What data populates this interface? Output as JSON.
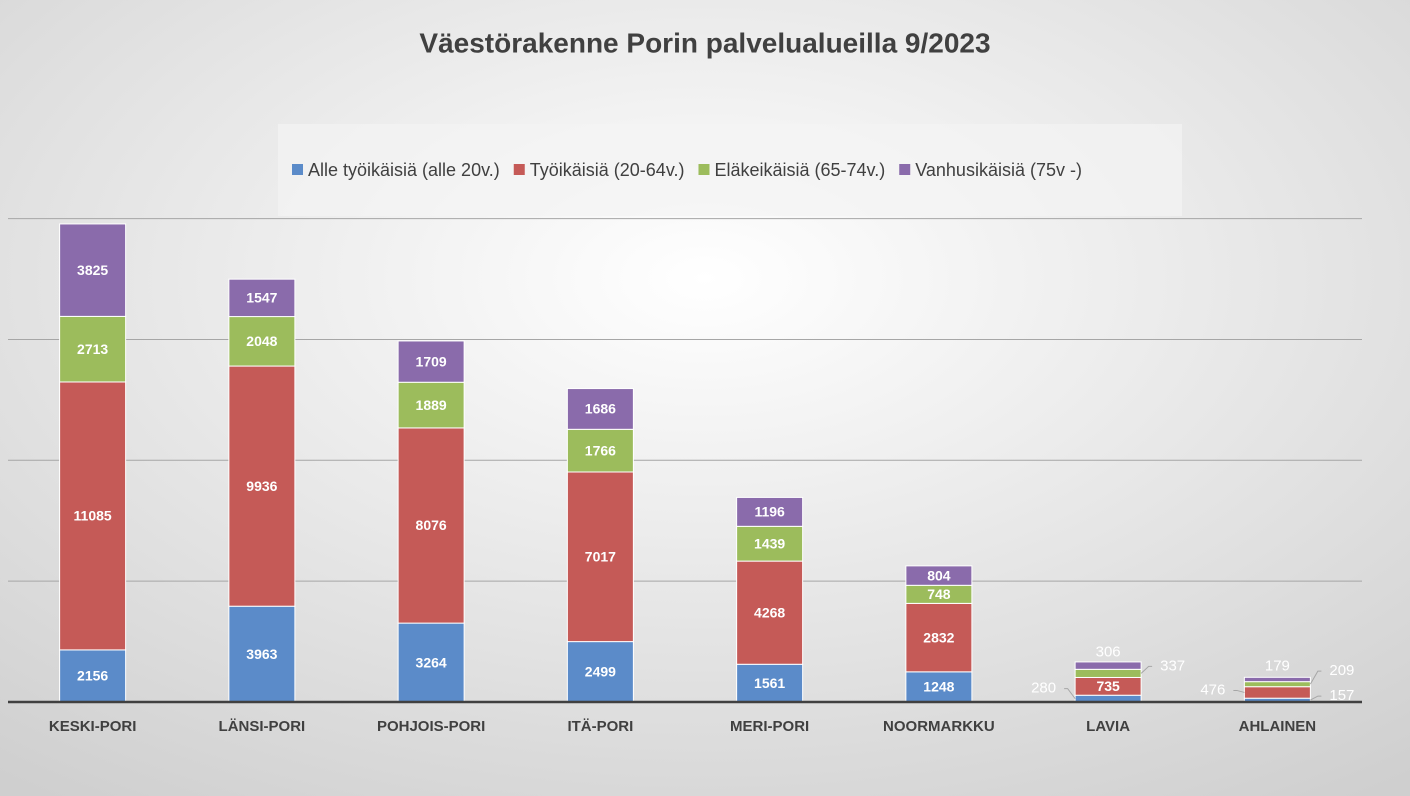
{
  "chart_data": {
    "type": "stacked_bar",
    "title": "Väestörakenne Porin palvelualueilla 9/2023",
    "categories": [
      "KESKI-PORI",
      "LÄNSI-PORI",
      "POHJOIS-PORI",
      "ITÄ-PORI",
      "MERI-PORI",
      "NOORMARKKU",
      "LAVIA",
      "AHLAINEN"
    ],
    "series": [
      {
        "name": "Alle työikäisiä (alle 20v.)",
        "color": "#5b8bc9",
        "values": [
          2156,
          3963,
          3264,
          2499,
          1561,
          1248,
          280,
          157
        ]
      },
      {
        "name": "Työikäisiä (20-64v.)",
        "color": "#c55a57",
        "values": [
          11085,
          9936,
          8076,
          7017,
          4268,
          2832,
          735,
          476
        ]
      },
      {
        "name": "Eläkeikäisiä (65-74v.)",
        "color": "#9cbc5c",
        "values": [
          2713,
          2048,
          1889,
          1766,
          1439,
          748,
          337,
          209
        ]
      },
      {
        "name": "Vanhusikäisiä (75v -)",
        "color": "#8a6bab",
        "values": [
          3825,
          1547,
          1709,
          1686,
          1196,
          804,
          306,
          179
        ]
      }
    ],
    "ylim": [
      0,
      20000
    ],
    "yticks": [
      0,
      5000,
      10000,
      15000,
      20000
    ],
    "grid": true,
    "legend": "top"
  }
}
